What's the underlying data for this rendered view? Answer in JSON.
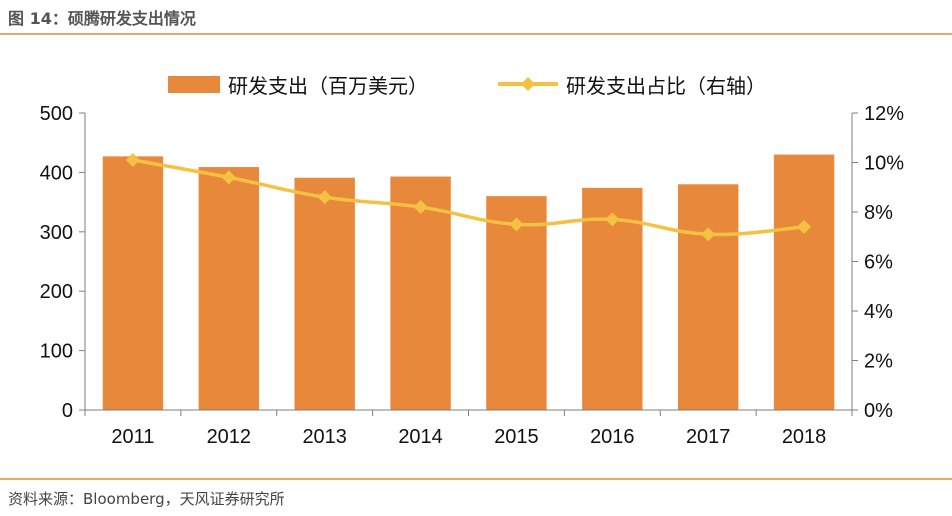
{
  "figure": {
    "title": "图 14：硕腾研发支出情况",
    "source": "资料来源：Bloomberg，天风证券研究所"
  },
  "colors": {
    "bar": "#E8883A",
    "line": "#F5C143",
    "rule": "#E8A86A",
    "axis": "#7F7F7F"
  },
  "chart_data": {
    "type": "bar",
    "title": "",
    "xlabel": "",
    "ylabel": "",
    "categories": [
      "2011",
      "2012",
      "2013",
      "2014",
      "2015",
      "2016",
      "2017",
      "2018"
    ],
    "ylim": [
      0,
      500
    ],
    "y2lim": [
      0,
      12
    ],
    "yticks": [
      "0",
      "100",
      "200",
      "300",
      "400",
      "500"
    ],
    "y2ticks": [
      "0%",
      "2%",
      "4%",
      "6%",
      "8%",
      "10%",
      "12%"
    ],
    "grid": false,
    "legend": "top",
    "series": [
      {
        "name": "研发支出（百万美元）",
        "type": "bar",
        "axis": "left",
        "values": [
          427,
          409,
          391,
          393,
          360,
          374,
          380,
          430
        ]
      },
      {
        "name": "研发支出占比（右轴）",
        "type": "line",
        "axis": "right",
        "unit": "%",
        "values": [
          10.1,
          9.4,
          8.6,
          8.2,
          7.5,
          7.7,
          7.1,
          7.4
        ]
      }
    ]
  }
}
